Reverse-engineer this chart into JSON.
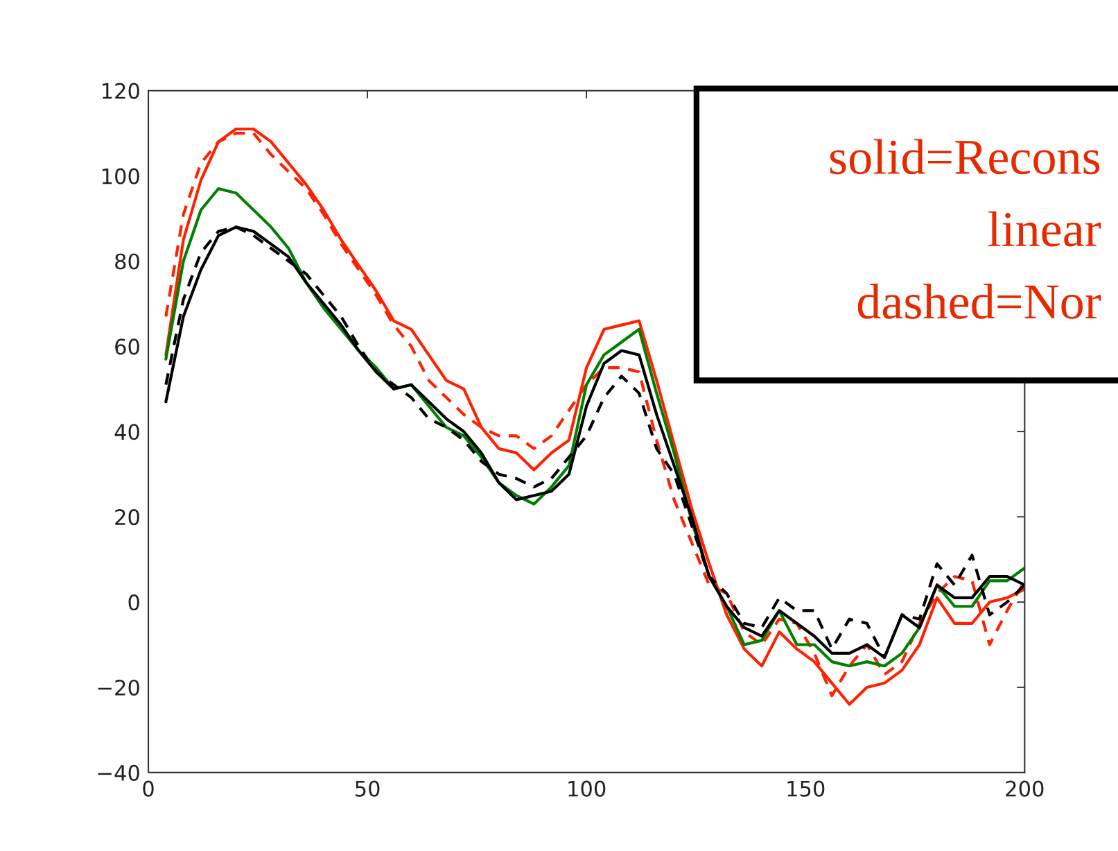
{
  "chart_data": {
    "type": "line",
    "x": [
      4,
      8,
      12,
      16,
      20,
      24,
      28,
      32,
      36,
      40,
      44,
      48,
      52,
      56,
      60,
      64,
      68,
      72,
      76,
      80,
      84,
      88,
      92,
      96,
      100,
      104,
      108,
      112,
      116,
      120,
      124,
      128,
      132,
      136,
      140,
      144,
      148,
      152,
      156,
      160,
      164,
      168,
      172,
      176,
      180,
      184,
      188,
      192,
      196,
      200
    ],
    "series": [
      {
        "color": "#ff2200",
        "line_style": "solid",
        "values": [
          58,
          85,
          99,
          108,
          111,
          111,
          108,
          103,
          98,
          92,
          85,
          79,
          73,
          66,
          64,
          58,
          52,
          50,
          41,
          36,
          35,
          31,
          35,
          38,
          55,
          64,
          65,
          66,
          52,
          37,
          22,
          9,
          -3,
          -11,
          -15,
          -7,
          -11,
          -14,
          -19,
          -24,
          -20,
          -19,
          -16,
          -10,
          1,
          -5,
          -5,
          0,
          1,
          3
        ]
      },
      {
        "color": "#ff2200",
        "line_style": "dashed",
        "values": [
          67,
          91,
          103,
          108,
          110,
          110,
          105,
          101,
          97,
          91,
          84,
          78,
          72,
          65,
          60,
          52,
          48,
          44,
          41,
          39,
          39,
          36,
          39,
          45,
          51,
          55,
          55,
          54,
          38,
          24,
          14,
          4,
          2,
          -7,
          -10,
          -4,
          -5,
          -12,
          -22,
          -15,
          -10,
          -17,
          -14,
          -5,
          2,
          6,
          5,
          -10,
          -2,
          5
        ]
      },
      {
        "color": "#008000",
        "line_style": "solid",
        "values": [
          57,
          80,
          92,
          97,
          96,
          92,
          88,
          83,
          75,
          69,
          64,
          59,
          55,
          50,
          51,
          46,
          41,
          39,
          34,
          28,
          25,
          23,
          27,
          32,
          51,
          58,
          61,
          64,
          49,
          35,
          19,
          6,
          -1,
          -10,
          -9,
          -2,
          -10,
          -10,
          -14,
          -15,
          -14,
          -15,
          -12,
          -6,
          4,
          -1,
          -1,
          5,
          5,
          8
        ]
      },
      {
        "color": "#000000",
        "line_style": "solid",
        "values": [
          47,
          67,
          78,
          86,
          88,
          87,
          84,
          81,
          75,
          70,
          65,
          59,
          54,
          50,
          51,
          47,
          43,
          40,
          35,
          28,
          24,
          25,
          26,
          30,
          46,
          56,
          59,
          58,
          44,
          32,
          20,
          6,
          -1,
          -6,
          -8,
          -2,
          -5,
          -8,
          -12,
          -12,
          -10,
          -13,
          -3,
          -6,
          4,
          1,
          1,
          6,
          6,
          4
        ]
      },
      {
        "color": "#000000",
        "line_style": "dashed",
        "values": [
          51,
          71,
          82,
          87,
          88,
          86,
          83,
          80,
          77,
          72,
          67,
          60,
          54,
          51,
          48,
          43,
          41,
          38,
          33,
          30,
          29,
          27,
          29,
          34,
          39,
          48,
          53,
          49,
          36,
          30,
          18,
          6,
          2,
          -5,
          -6,
          1,
          -2,
          -2,
          -11,
          -4,
          -5,
          -13,
          -3,
          -4,
          9,
          4,
          11,
          -3,
          0,
          4
        ]
      }
    ],
    "xlim": [
      0,
      200
    ],
    "xticks": [
      0,
      50,
      100,
      150,
      200
    ],
    "ylim": [
      -40,
      120
    ],
    "yticks": [
      {
        "value": -40,
        "label": "−40"
      },
      {
        "value": -20,
        "label": "−20"
      },
      0,
      20,
      40,
      60,
      80,
      100,
      120
    ],
    "grid": false,
    "legend": false,
    "annotations": [
      "solid=Recons",
      "linear",
      "dashed=Nor"
    ]
  }
}
